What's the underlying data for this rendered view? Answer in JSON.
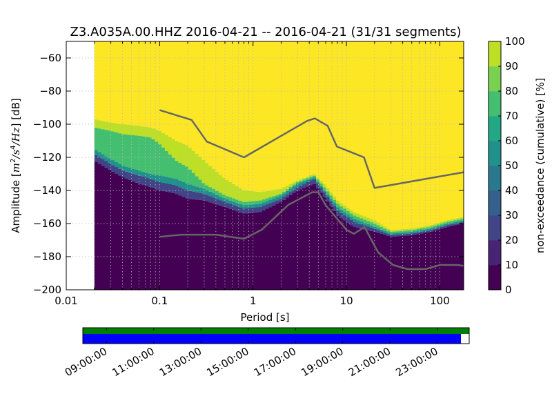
{
  "chart_data": {
    "type": "heatmap",
    "title": "Z3.A035A.00.HHZ   2016-04-21 -- 2016-04-21  (31/31 segments)",
    "xlabel": "Period [s]",
    "ylabel_prefix": "Amplitude [",
    "ylabel_math": {
      "m": "m",
      "two": "2",
      "slash1": "/",
      "s": "s",
      "four": "4",
      "slash2": "/",
      "Hz": "Hz"
    },
    "ylabel_suffix": "] [dB]",
    "xscale": "log",
    "xlim": [
      0.01,
      180
    ],
    "ylim": [
      -200,
      -50
    ],
    "data_period_start": 0.02,
    "x_ticks": [
      {
        "value": 0.01,
        "label": "0.01"
      },
      {
        "value": 0.1,
        "label": "0.1"
      },
      {
        "value": 1,
        "label": "1"
      },
      {
        "value": 10,
        "label": "10"
      },
      {
        "value": 100,
        "label": "100"
      }
    ],
    "y_ticks": [
      {
        "value": -60,
        "label": "−60"
      },
      {
        "value": -80,
        "label": "−80"
      },
      {
        "value": -100,
        "label": "−100"
      },
      {
        "value": -120,
        "label": "−120"
      },
      {
        "value": -140,
        "label": "−140"
      },
      {
        "value": -160,
        "label": "−160"
      },
      {
        "value": -180,
        "label": "−180"
      },
      {
        "value": -200,
        "label": "−200"
      }
    ],
    "grid": true,
    "colorbar": {
      "label": "non-exceedance (cumulative) [%]",
      "range": [
        0,
        100
      ],
      "ticks": [
        "0",
        "10",
        "20",
        "30",
        "40",
        "50",
        "60",
        "70",
        "80",
        "90",
        "100"
      ],
      "colors": [
        "#440154",
        "#482475",
        "#414487",
        "#355f8d",
        "#2a788e",
        "#21918c",
        "#22a884",
        "#44bf70",
        "#7ad151",
        "#bddf26",
        "#fde725"
      ]
    },
    "profile": [
      {
        "period": 0.02,
        "p0": -122,
        "p1": -118,
        "p5": -115,
        "p75": -102,
        "p95": -97
      },
      {
        "period": 0.03,
        "p0": -128,
        "p1": -124,
        "p5": -121,
        "p75": -104,
        "p95": -99
      },
      {
        "period": 0.04,
        "p0": -132,
        "p1": -128,
        "p5": -125,
        "p75": -106,
        "p95": -100
      },
      {
        "period": 0.06,
        "p0": -136,
        "p1": -131,
        "p5": -128,
        "p75": -107,
        "p95": -101
      },
      {
        "period": 0.08,
        "p0": -138,
        "p1": -133,
        "p5": -130,
        "p75": -108,
        "p95": -102
      },
      {
        "period": 0.1,
        "p0": -140,
        "p1": -135,
        "p5": -131,
        "p75": -112,
        "p95": -104
      },
      {
        "period": 0.15,
        "p0": -142,
        "p1": -137,
        "p5": -133,
        "p75": -122,
        "p95": -110
      },
      {
        "period": 0.2,
        "p0": -145,
        "p1": -140,
        "p5": -136,
        "p75": -126,
        "p95": -113
      },
      {
        "period": 0.3,
        "p0": -146,
        "p1": -142,
        "p5": -139,
        "p75": -136,
        "p95": -122
      },
      {
        "period": 0.5,
        "p0": -150,
        "p1": -147,
        "p5": -145,
        "p75": -143,
        "p95": -133
      },
      {
        "period": 0.8,
        "p0": -154,
        "p1": -151,
        "p5": -149,
        "p75": -147,
        "p95": -140
      },
      {
        "period": 1.2,
        "p0": -153,
        "p1": -150,
        "p5": -148,
        "p75": -146,
        "p95": -141
      },
      {
        "period": 2.0,
        "p0": -147,
        "p1": -145,
        "p5": -143,
        "p75": -142,
        "p95": -139
      },
      {
        "period": 3.0,
        "p0": -140,
        "p1": -138,
        "p5": -136,
        "p75": -135,
        "p95": -134
      },
      {
        "period": 4.5,
        "p0": -136,
        "p1": -133,
        "p5": -132,
        "p75": -131,
        "p95": -130
      },
      {
        "period": 6.0,
        "p0": -145,
        "p1": -142,
        "p5": -141,
        "p75": -139,
        "p95": -137
      },
      {
        "period": 8.0,
        "p0": -155,
        "p1": -152,
        "p5": -150,
        "p75": -148,
        "p95": -146
      },
      {
        "period": 12,
        "p0": -162,
        "p1": -159,
        "p5": -157,
        "p75": -155,
        "p95": -153
      },
      {
        "period": 20,
        "p0": -165,
        "p1": -163,
        "p5": -162,
        "p75": -160,
        "p95": -158
      },
      {
        "period": 30,
        "p0": -168,
        "p1": -167,
        "p5": -166,
        "p75": -165,
        "p95": -164
      },
      {
        "period": 50,
        "p0": -167,
        "p1": -166,
        "p5": -165,
        "p75": -164,
        "p95": -163
      },
      {
        "period": 80,
        "p0": -165,
        "p1": -164,
        "p5": -163,
        "p75": -162,
        "p95": -161
      },
      {
        "period": 120,
        "p0": -162,
        "p1": -161,
        "p5": -160,
        "p75": -159,
        "p95": -158
      },
      {
        "period": 180,
        "p0": -160,
        "p1": -159,
        "p5": -158,
        "p75": -157,
        "p95": -156
      }
    ],
    "nhnm": [
      [
        0.1,
        -91.5
      ],
      [
        0.22,
        -97.4
      ],
      [
        0.32,
        -110.5
      ],
      [
        0.8,
        -120
      ],
      [
        3.8,
        -98
      ],
      [
        4.6,
        -96.5
      ],
      [
        6.3,
        -101
      ],
      [
        7.9,
        -113.5
      ],
      [
        15.4,
        -120
      ],
      [
        20,
        -138.5
      ],
      [
        180,
        -129
      ]
    ],
    "nlnm": [
      [
        0.1,
        -168
      ],
      [
        0.17,
        -166.7
      ],
      [
        0.4,
        -166.7
      ],
      [
        0.8,
        -169.2
      ],
      [
        1.24,
        -163.7
      ],
      [
        2.4,
        -148.6
      ],
      [
        4.3,
        -141.1
      ],
      [
        5.0,
        -141.1
      ],
      [
        6.0,
        -149
      ],
      [
        10,
        -163.8
      ],
      [
        12,
        -166.2
      ],
      [
        15.6,
        -162.1
      ],
      [
        21.9,
        -177.5
      ],
      [
        31.6,
        -185
      ],
      [
        45,
        -187.5
      ],
      [
        70,
        -187.5
      ],
      [
        101,
        -185
      ],
      [
        154,
        -185
      ],
      [
        180,
        -185.5
      ]
    ],
    "timeline": {
      "tick_labels": [
        "09:00:00",
        "11:00:00",
        "13:00:00",
        "15:00:00",
        "17:00:00",
        "19:00:00",
        "21:00:00",
        "23:00:00"
      ],
      "tick_hours": [
        9,
        11,
        13,
        15,
        17,
        19,
        21,
        23
      ],
      "range_hours": [
        8.0,
        24.35
      ],
      "data_end_hours": 24.0,
      "available_color": "#008000",
      "used_color": "#0000ff"
    }
  }
}
